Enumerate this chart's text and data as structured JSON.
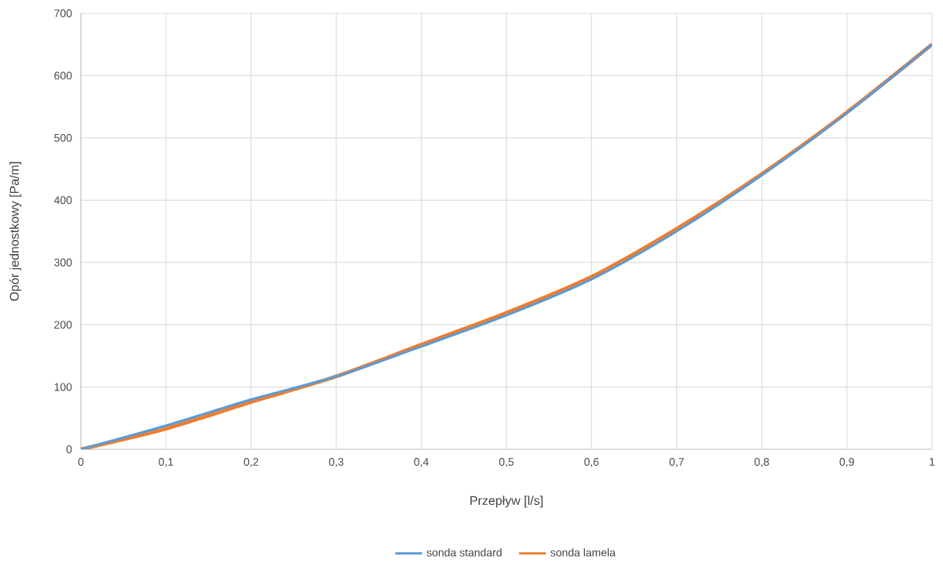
{
  "chart_data": {
    "type": "line",
    "xlabel": "Przepływ [l/s]",
    "ylabel": "Opór jednostkowy [Pa/m]",
    "x": [
      0,
      0.1,
      0.2,
      0.3,
      0.4,
      0.5,
      0.6,
      0.7,
      0.8,
      0.9,
      1
    ],
    "series": [
      {
        "name": "sonda standard",
        "color": "#5b9bd5",
        "values": [
          0,
          38,
          80,
          117,
          165,
          215,
          273,
          350,
          440,
          540,
          650
        ]
      },
      {
        "name": "sonda lamela",
        "color": "#ed7d31",
        "values": [
          0,
          33,
          76,
          117,
          168,
          219,
          277,
          354,
          442,
          541,
          650
        ]
      }
    ],
    "xlim": [
      0,
      1
    ],
    "ylim": [
      0,
      700
    ],
    "xticks": [
      0,
      {
        "value": 0.1,
        "label": "0,1"
      },
      {
        "value": 0.2,
        "label": "0,2"
      },
      {
        "value": 0.3,
        "label": "0,3"
      },
      {
        "value": 0.4,
        "label": "0,4"
      },
      {
        "value": 0.5,
        "label": "0,5"
      },
      {
        "value": 0.6,
        "label": "0,6"
      },
      {
        "value": 0.7,
        "label": "0,7"
      },
      {
        "value": 0.8,
        "label": "0,8"
      },
      {
        "value": 0.9,
        "label": "0,9"
      },
      1
    ],
    "yticks": [
      0,
      100,
      200,
      300,
      400,
      500,
      600,
      700
    ],
    "grid": true,
    "legend": "bottom",
    "marker": "none",
    "line_style": "solid"
  }
}
